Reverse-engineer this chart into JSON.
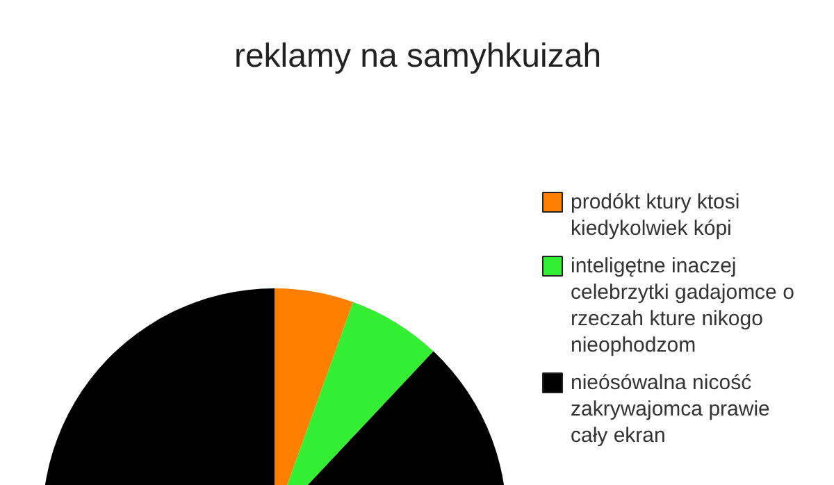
{
  "chart_data": {
    "type": "pie",
    "title": "reklamy na samyhkuizah",
    "categories": [
      "prodókt ktury ktosi kiedykolwiek kópi",
      "inteligętne inaczej celebrzytki gadajomce o rzeczah kture nikogo nieophodzom",
      "nieósówalna nicość zakrywajomca prawie cały ekran"
    ],
    "values": [
      5.5,
      6.5,
      88
    ],
    "colors": [
      "#ff8000",
      "#33ee33",
      "#000000"
    ],
    "legend": "right"
  }
}
